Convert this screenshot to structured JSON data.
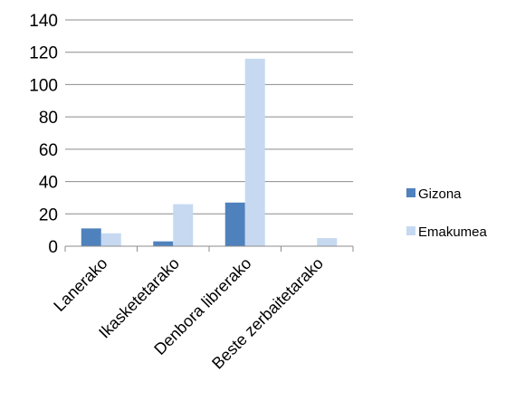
{
  "chart_data": {
    "type": "bar",
    "categories": [
      "Lanerako",
      "Ikasketetarako",
      "Denbora librerako",
      "Beste zerbaitetarako"
    ],
    "series": [
      {
        "name": "Gizona",
        "values": [
          11,
          3,
          27,
          0
        ],
        "color": "#4f81bd"
      },
      {
        "name": "Emakumea",
        "values": [
          8,
          26,
          116,
          5
        ],
        "color": "#c6d9f1"
      }
    ],
    "yticks": [
      "0",
      "20",
      "40",
      "60",
      "80",
      "100",
      "120",
      "140"
    ],
    "ylim": [
      0,
      140
    ],
    "grid": true,
    "legend": "right"
  }
}
